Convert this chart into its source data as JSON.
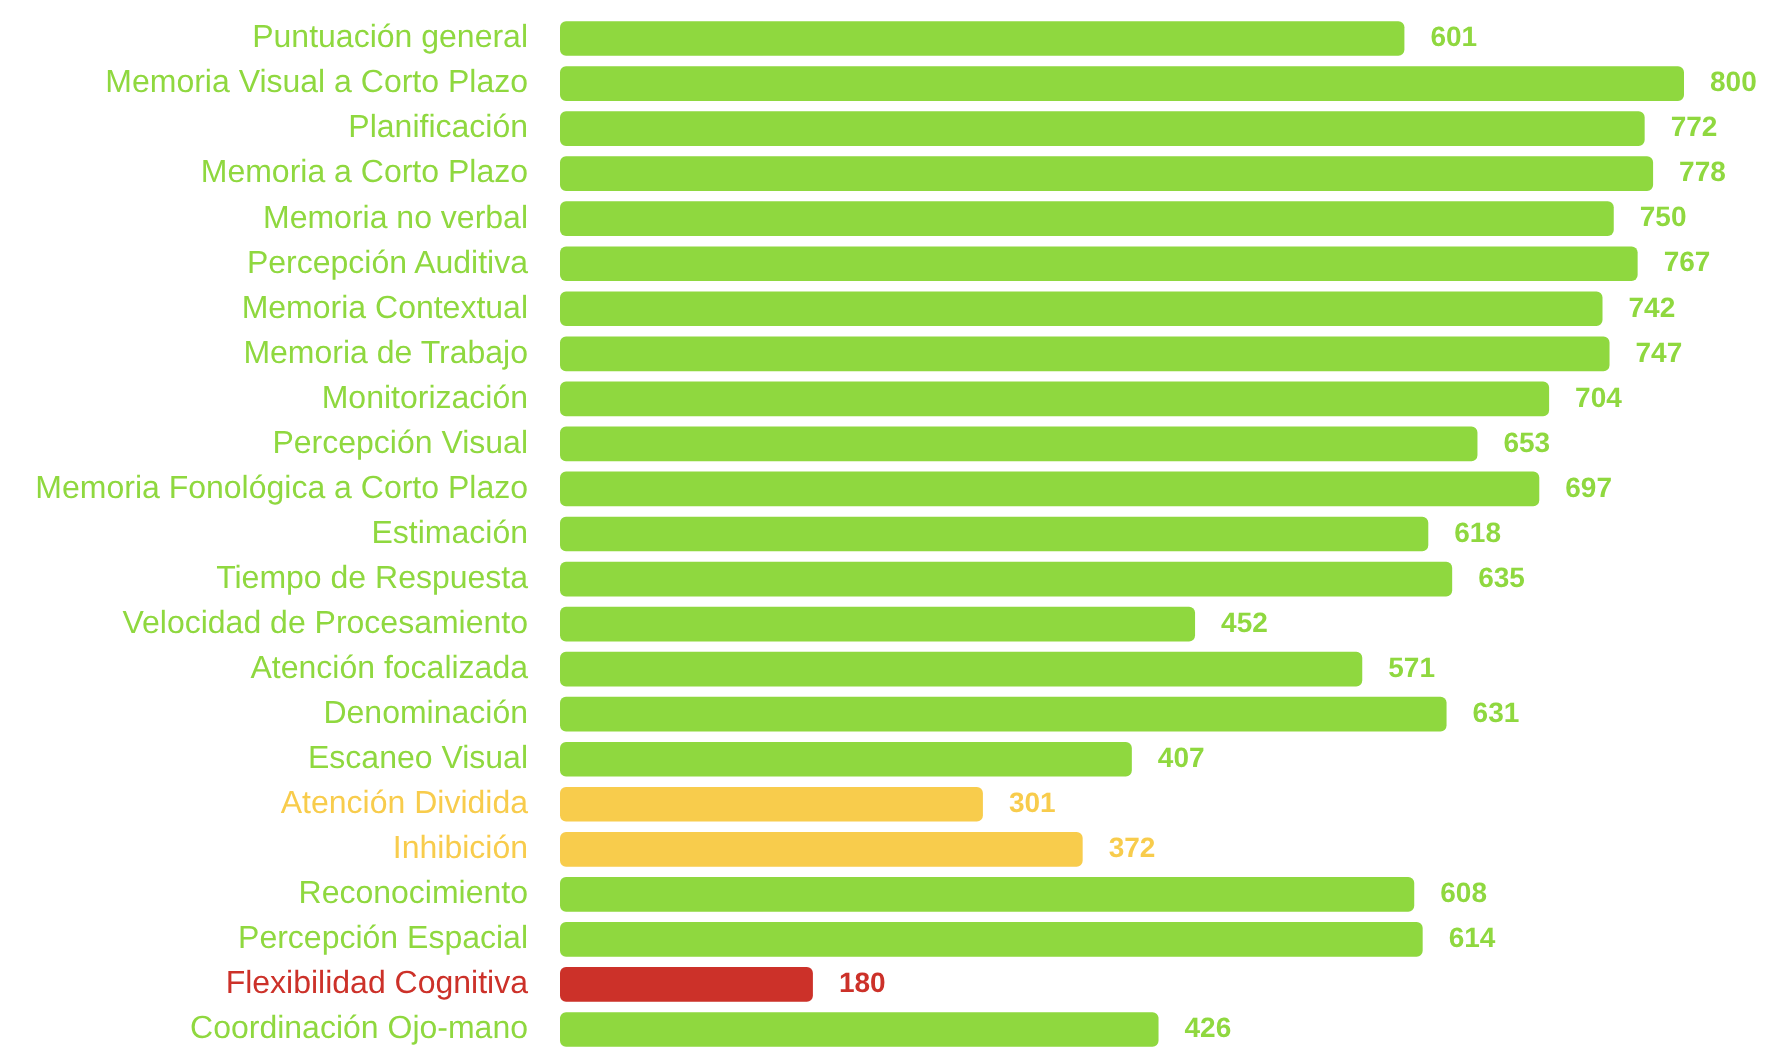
{
  "chart_data": {
    "type": "bar",
    "orientation": "horizontal",
    "categories": [
      "Puntuación general",
      "Memoria Visual a Corto Plazo",
      "Planificación",
      "Memoria a Corto Plazo",
      "Memoria no verbal",
      "Percepción Auditiva",
      "Memoria Contextual",
      "Memoria de Trabajo",
      "Monitorización",
      "Percepción Visual",
      "Memoria Fonológica a Corto Plazo",
      "Estimación",
      "Tiempo de Respuesta",
      "Velocidad de Procesamiento",
      "Atención focalizada",
      "Denominación",
      "Escaneo Visual",
      "Atención Dividida",
      "Inhibición",
      "Reconocimiento",
      "Percepción Espacial",
      "Flexibilidad Cognitiva",
      "Coordinación Ojo-mano"
    ],
    "values": [
      601,
      800,
      772,
      778,
      750,
      767,
      742,
      747,
      704,
      653,
      697,
      618,
      635,
      452,
      571,
      631,
      407,
      301,
      372,
      608,
      614,
      180,
      426
    ],
    "colors": [
      "#8fd83f",
      "#8fd83f",
      "#8fd83f",
      "#8fd83f",
      "#8fd83f",
      "#8fd83f",
      "#8fd83f",
      "#8fd83f",
      "#8fd83f",
      "#8fd83f",
      "#8fd83f",
      "#8fd83f",
      "#8fd83f",
      "#8fd83f",
      "#8fd83f",
      "#8fd83f",
      "#8fd83f",
      "#f8cc4c",
      "#f8cc4c",
      "#8fd83f",
      "#8fd83f",
      "#cc3129",
      "#8fd83f"
    ],
    "data_labels": true,
    "tick_labels": "y",
    "grid": false,
    "legend": false
  }
}
